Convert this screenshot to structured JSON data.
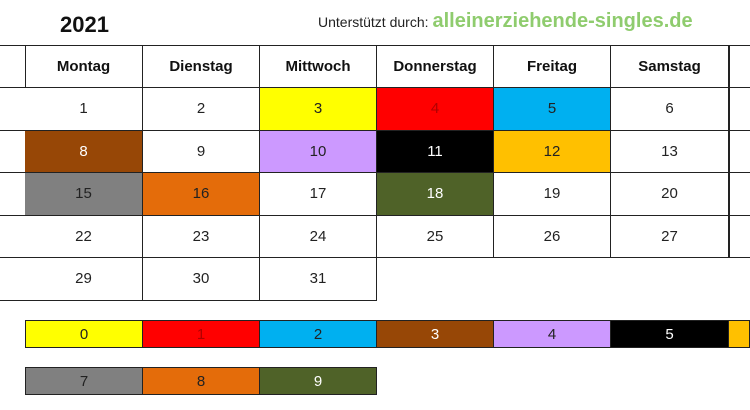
{
  "header": {
    "year": "2021",
    "support_label": "Unterstützt durch:",
    "support_link": "alleinerziehende-singles.de"
  },
  "weekdays": [
    "Montag",
    "Dienstag",
    "Mittwoch",
    "Donnerstag",
    "Freitag",
    "Samstag"
  ],
  "weeks": [
    [
      {
        "day": "1",
        "color": "#ffffff"
      },
      {
        "day": "2",
        "color": "#ffffff"
      },
      {
        "day": "3",
        "color": "#ffff00"
      },
      {
        "day": "4",
        "color": "#ff0000"
      },
      {
        "day": "5",
        "color": "#00b0f0"
      },
      {
        "day": "6",
        "color": "#ffffff"
      }
    ],
    [
      {
        "day": "8",
        "color": "#974706"
      },
      {
        "day": "9",
        "color": "#ffffff"
      },
      {
        "day": "10",
        "color": "#cc99ff"
      },
      {
        "day": "11",
        "color": "#000000"
      },
      {
        "day": "12",
        "color": "#ffc000"
      },
      {
        "day": "13",
        "color": "#ffffff"
      }
    ],
    [
      {
        "day": "15",
        "color": "#808080"
      },
      {
        "day": "16",
        "color": "#e46c0a"
      },
      {
        "day": "17",
        "color": "#ffffff"
      },
      {
        "day": "18",
        "color": "#4f6228"
      },
      {
        "day": "19",
        "color": "#ffffff"
      },
      {
        "day": "20",
        "color": "#ffffff"
      }
    ],
    [
      {
        "day": "22",
        "color": "#ffffff"
      },
      {
        "day": "23",
        "color": "#ffffff"
      },
      {
        "day": "24",
        "color": "#ffffff"
      },
      {
        "day": "25",
        "color": "#ffffff"
      },
      {
        "day": "26",
        "color": "#ffffff"
      },
      {
        "day": "27",
        "color": "#ffffff"
      }
    ],
    [
      {
        "day": "29",
        "color": "#ffffff"
      },
      {
        "day": "30",
        "color": "#ffffff"
      },
      {
        "day": "31",
        "color": "#ffffff"
      }
    ]
  ],
  "legend_rows": [
    [
      {
        "label": "0",
        "color": "#ffff00"
      },
      {
        "label": "1",
        "color": "#ff0000"
      },
      {
        "label": "2",
        "color": "#00b0f0"
      },
      {
        "label": "3",
        "color": "#974706"
      },
      {
        "label": "4",
        "color": "#cc99ff"
      },
      {
        "label": "5",
        "color": "#000000"
      },
      {
        "label": "",
        "color": "#ffc000"
      }
    ],
    [
      {
        "label": "7",
        "color": "#808080"
      },
      {
        "label": "8",
        "color": "#e46c0a"
      },
      {
        "label": "9",
        "color": "#4f6228"
      }
    ]
  ]
}
